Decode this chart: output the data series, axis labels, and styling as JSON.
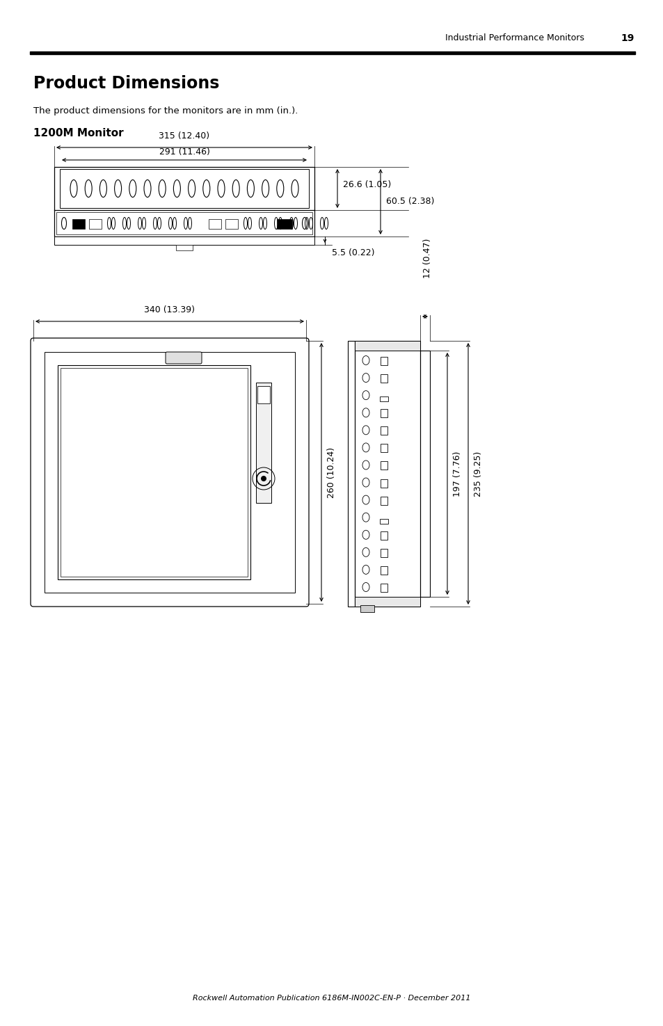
{
  "page_header_text": "Industrial Performance Monitors",
  "page_number": "19",
  "title": "Product Dimensions",
  "subtitle": "The product dimensions for the monitors are in mm (in.).",
  "section_title": "1200M Monitor",
  "footer_text": "Rockwell Automation Publication 6186M-IN002C-EN-P · December 2011",
  "bg_color": "#ffffff",
  "line_color": "#000000",
  "dim_315": "315 (12.40)",
  "dim_291": "291 (11.46)",
  "dim_26_6": "26.6 (1.05)",
  "dim_60_5": "60.5 (2.38)",
  "dim_5_5": "5.5 (0.22)",
  "dim_340": "340 (13.39)",
  "dim_260": "260 (10.24)",
  "dim_12": "12 (0.47)",
  "dim_197": "197 (7.76)",
  "dim_235": "235 (9.25)"
}
